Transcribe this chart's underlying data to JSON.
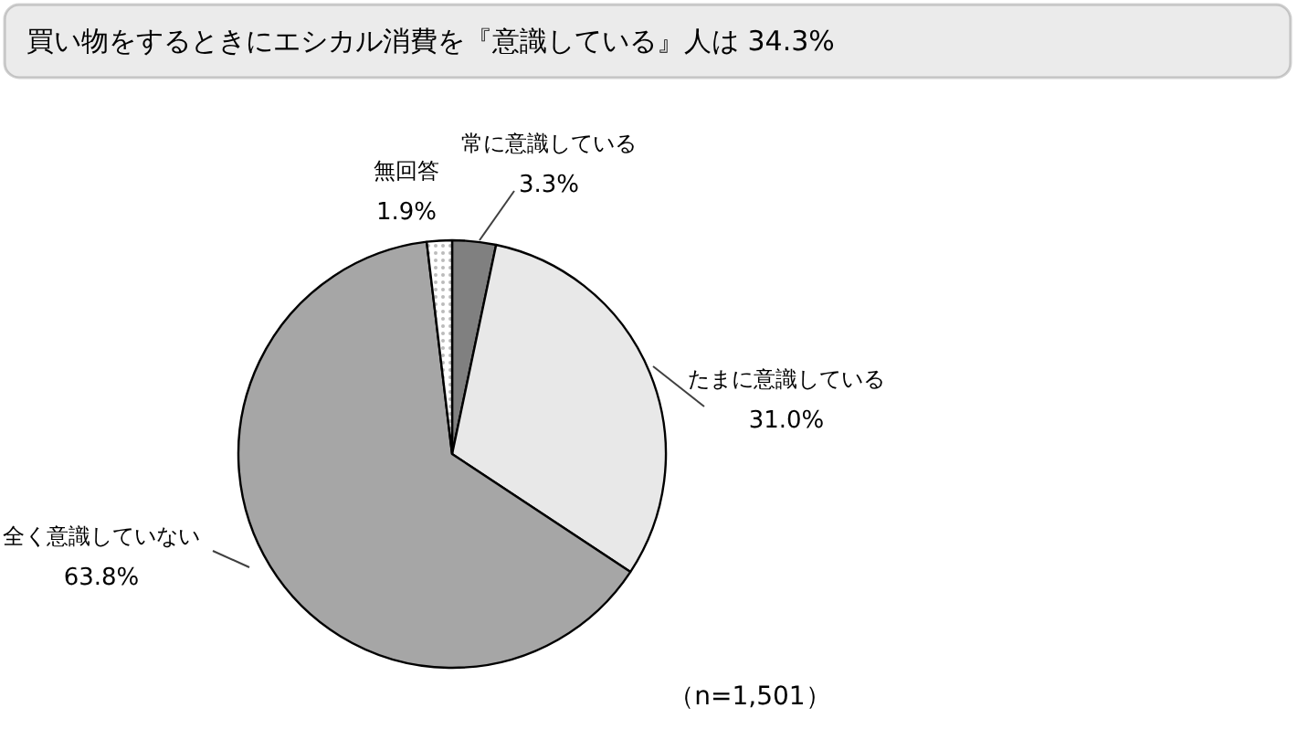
{
  "chart_data": {
    "type": "pie",
    "title": "買い物をするときにエシカル消費を『意識している』人は 34.3%",
    "categories": [
      "常に意識している",
      "たまに意識している",
      "全く意識していない",
      "無回答"
    ],
    "values": [
      3.3,
      31.0,
      63.8,
      1.9
    ],
    "colors": [
      "#808080",
      "#e8e8e8",
      "#a6a6a6",
      "#ffffff"
    ],
    "value_labels": [
      "3.3%",
      "31.0%",
      "63.8%",
      "1.9%"
    ],
    "annotations": [
      "（n=1,501）"
    ]
  }
}
